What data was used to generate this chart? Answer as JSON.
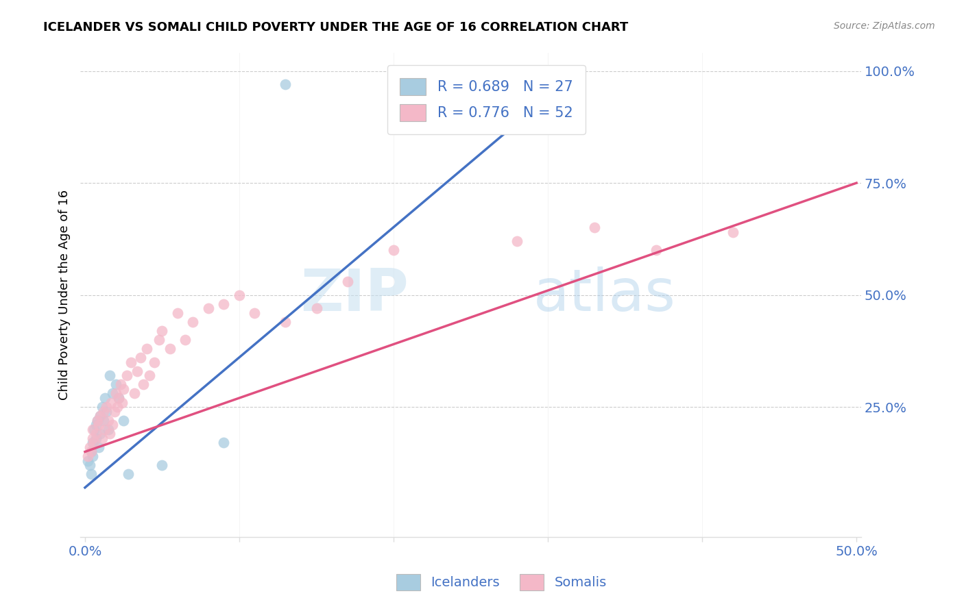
{
  "title": "ICELANDER VS SOMALI CHILD POVERTY UNDER THE AGE OF 16 CORRELATION CHART",
  "source": "Source: ZipAtlas.com",
  "ylabel": "Child Poverty Under the Age of 16",
  "ytick_values": [
    0.25,
    0.5,
    0.75,
    1.0
  ],
  "ytick_labels": [
    "25.0%",
    "50.0%",
    "75.0%",
    "100.0%"
  ],
  "xlim": [
    -0.003,
    0.503
  ],
  "ylim": [
    -0.04,
    1.04
  ],
  "xtick_positions": [
    0.0,
    0.1,
    0.2,
    0.3,
    0.4,
    0.5
  ],
  "xtick_labels": [
    "0.0%",
    "",
    "",
    "",
    "",
    "50.0%"
  ],
  "watermark_zip": "ZIP",
  "watermark_atlas": "atlas",
  "legend_icelander": "R = 0.689   N = 27",
  "legend_somali": "R = 0.776   N = 52",
  "legend_label_ice": "Icelanders",
  "legend_label_som": "Somalis",
  "color_ice": "#a8cce0",
  "color_som": "#f4b8c8",
  "color_ice_line": "#4472c4",
  "color_som_line": "#e05080",
  "color_axis_text": "#4472c4",
  "icelander_x": [
    0.002,
    0.003,
    0.004,
    0.004,
    0.005,
    0.005,
    0.006,
    0.007,
    0.007,
    0.008,
    0.009,
    0.01,
    0.01,
    0.011,
    0.012,
    0.013,
    0.014,
    0.015,
    0.016,
    0.018,
    0.02,
    0.022,
    0.025,
    0.028,
    0.05,
    0.09,
    0.13
  ],
  "icelander_y": [
    0.13,
    0.12,
    0.15,
    0.1,
    0.17,
    0.14,
    0.2,
    0.18,
    0.21,
    0.22,
    0.16,
    0.19,
    0.23,
    0.25,
    0.22,
    0.27,
    0.24,
    0.2,
    0.32,
    0.28,
    0.3,
    0.27,
    0.22,
    0.1,
    0.12,
    0.17,
    0.97
  ],
  "somali_x": [
    0.002,
    0.003,
    0.004,
    0.005,
    0.005,
    0.006,
    0.007,
    0.008,
    0.009,
    0.01,
    0.011,
    0.012,
    0.013,
    0.014,
    0.015,
    0.016,
    0.017,
    0.018,
    0.019,
    0.02,
    0.021,
    0.022,
    0.023,
    0.024,
    0.025,
    0.027,
    0.03,
    0.032,
    0.034,
    0.036,
    0.038,
    0.04,
    0.042,
    0.045,
    0.048,
    0.05,
    0.055,
    0.06,
    0.065,
    0.07,
    0.08,
    0.09,
    0.1,
    0.11,
    0.13,
    0.15,
    0.17,
    0.2,
    0.28,
    0.33,
    0.37,
    0.42
  ],
  "somali_y": [
    0.14,
    0.16,
    0.15,
    0.18,
    0.2,
    0.17,
    0.19,
    0.22,
    0.21,
    0.23,
    0.18,
    0.24,
    0.2,
    0.25,
    0.22,
    0.19,
    0.26,
    0.21,
    0.24,
    0.28,
    0.25,
    0.27,
    0.3,
    0.26,
    0.29,
    0.32,
    0.35,
    0.28,
    0.33,
    0.36,
    0.3,
    0.38,
    0.32,
    0.35,
    0.4,
    0.42,
    0.38,
    0.46,
    0.4,
    0.44,
    0.47,
    0.48,
    0.5,
    0.46,
    0.44,
    0.47,
    0.53,
    0.6,
    0.62,
    0.65,
    0.6,
    0.64
  ],
  "ice_line_x": [
    0.0,
    0.32
  ],
  "ice_line_y": [
    0.07,
    1.0
  ],
  "som_line_x": [
    0.0,
    0.5
  ],
  "som_line_y": [
    0.15,
    0.75
  ]
}
